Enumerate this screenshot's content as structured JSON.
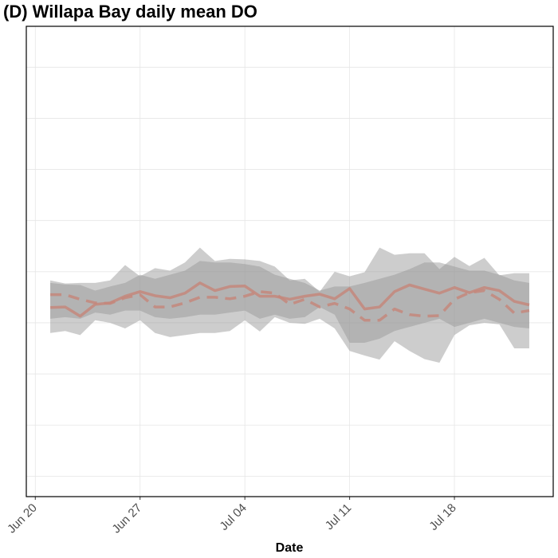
{
  "chart_data": {
    "type": "line",
    "title": "(D) Willapa Bay daily mean DO",
    "x_label": "Date",
    "x": [
      "Jun 21",
      "Jun 22",
      "Jun 23",
      "Jun 24",
      "Jun 25",
      "Jun 26",
      "Jun 27",
      "Jun 28",
      "Jun 29",
      "Jun 30",
      "Jul 01",
      "Jul 02",
      "Jul 03",
      "Jul 04",
      "Jul 05",
      "Jul 06",
      "Jul 07",
      "Jul 08",
      "Jul 09",
      "Jul 10",
      "Jul 11",
      "Jul 12",
      "Jul 13",
      "Jul 14",
      "Jul 15",
      "Jul 16",
      "Jul 17",
      "Jul 18",
      "Jul 19",
      "Jul 20",
      "Jul 21",
      "Jul 22",
      "Jul 23"
    ],
    "xticks": [
      "Jun 20",
      "Jun 27",
      "Jul 04",
      "Jul 11",
      "Jul 18"
    ],
    "ylim": [
      6,
      98
    ],
    "yticks": [
      10,
      20,
      30,
      40,
      50,
      60,
      70,
      80,
      90
    ],
    "grid": true,
    "ribbon_color": "rgba(150,150,150,0.48)",
    "series": [
      {
        "color": "#c4877b",
        "dash": false,
        "values": [
          43.0,
          43.1,
          41.3,
          43.6,
          43.9,
          45.2,
          46.1,
          45.3,
          44.9,
          45.8,
          47.8,
          46.3,
          47.1,
          47.2,
          45.2,
          45.2,
          44.6,
          45.2,
          45.6,
          44.7,
          46.7,
          42.7,
          43.1,
          46.1,
          47.4,
          46.6,
          45.8,
          46.9,
          45.9,
          46.9,
          46.3,
          44.2,
          43.5
        ],
        "upper": [
          47.8,
          47.5,
          47.4,
          46.3,
          47.1,
          47.8,
          49.4,
          48.6,
          49.4,
          50.2,
          52.1,
          51.8,
          51.8,
          51.5,
          51.0,
          49.4,
          48.6,
          47.8,
          46.3,
          47.1,
          47.1,
          47.8,
          48.6,
          49.4,
          50.5,
          51.8,
          51.8,
          51.0,
          50.2,
          50.2,
          49.4,
          48.3,
          47.8
        ],
        "lower": [
          40.8,
          41.1,
          40.8,
          42.0,
          41.6,
          42.4,
          42.4,
          41.1,
          40.8,
          41.1,
          41.6,
          41.6,
          42.0,
          42.4,
          40.8,
          41.6,
          40.8,
          41.1,
          43.1,
          41.6,
          36.1,
          36.1,
          36.9,
          38.4,
          39.2,
          40.0,
          40.8,
          39.2,
          40.0,
          40.8,
          40.0,
          39.2,
          38.9
        ]
      },
      {
        "color": "#c4877b",
        "dash": true,
        "values": [
          45.5,
          45.5,
          44.6,
          43.9,
          43.8,
          44.9,
          45.5,
          43.1,
          43.1,
          43.9,
          45.0,
          45.0,
          44.7,
          45.2,
          46.1,
          45.8,
          43.6,
          44.6,
          43.1,
          43.8,
          42.7,
          40.5,
          40.5,
          42.7,
          41.6,
          41.3,
          41.4,
          44.6,
          45.9,
          46.3,
          44.6,
          41.9,
          42.4
        ],
        "upper": [
          48.3,
          47.7,
          47.8,
          47.8,
          48.3,
          51.3,
          49.1,
          50.7,
          50.2,
          51.8,
          54.7,
          52.1,
          52.5,
          52.4,
          52.1,
          51.0,
          48.3,
          48.6,
          46.1,
          50.0,
          49.1,
          49.9,
          54.7,
          53.3,
          53.6,
          53.6,
          50.5,
          52.9,
          51.1,
          52.7,
          49.3,
          49.7,
          49.7
        ],
        "lower": [
          38.0,
          38.4,
          37.6,
          40.5,
          40.0,
          38.9,
          40.5,
          38.0,
          37.2,
          37.6,
          38.0,
          38.0,
          38.4,
          40.5,
          38.3,
          41.1,
          40.0,
          39.8,
          40.8,
          38.9,
          34.5,
          33.6,
          32.8,
          36.4,
          34.5,
          32.9,
          32.2,
          37.6,
          39.5,
          40.0,
          39.7,
          35.0,
          35.0
        ]
      }
    ]
  }
}
